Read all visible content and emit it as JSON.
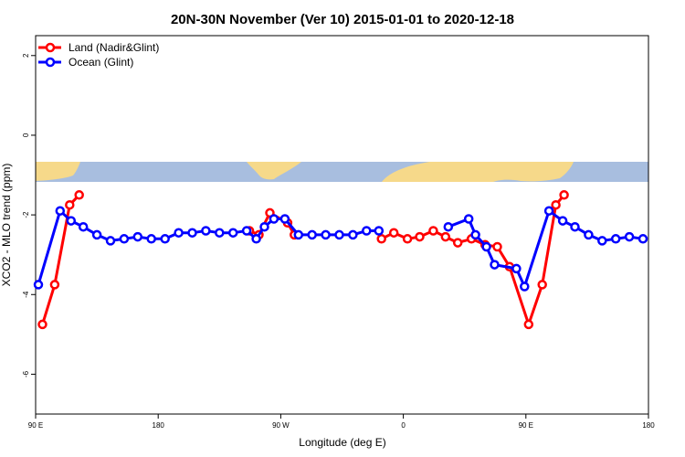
{
  "chart_data": {
    "type": "line",
    "title": "20N-30N November (Ver 10)   2015-01-01 to 2020-12-18",
    "xlabel": "Longitude (deg E)",
    "ylabel": "XCO2 - MLO trend (ppm)",
    "xlim": [
      90,
      540
    ],
    "ylim": [
      -7.0,
      2.5
    ],
    "x_ticks": [
      {
        "value": 90,
        "label": "90 E"
      },
      {
        "value": 180,
        "label": "180"
      },
      {
        "value": 270,
        "label": "90 W"
      },
      {
        "value": 360,
        "label": "0"
      },
      {
        "value": 450,
        "label": "90 E"
      },
      {
        "value": 540,
        "label": "180"
      }
    ],
    "y_ticks": [
      {
        "value": 2,
        "label": "2"
      },
      {
        "value": 0,
        "label": "0"
      },
      {
        "value": -2,
        "label": "-2"
      },
      {
        "value": -4,
        "label": "-4"
      },
      {
        "value": -6,
        "label": "-6"
      }
    ],
    "legend_position": "top-left",
    "background_map": {
      "y_range": [
        -1.45,
        -0.9
      ],
      "ocean_color": "#a8bedf",
      "land_color": "#f6d98a"
    },
    "series": [
      {
        "name": "Land (Nadir&Glint)",
        "color": "#ff0000",
        "points": [
          [
            95,
            -4.75
          ],
          [
            104,
            -3.75
          ],
          [
            115,
            -1.75
          ],
          [
            122,
            -1.5
          ],
          [
            0,
            null
          ],
          [
            247,
            -2.4
          ],
          [
            254,
            -2.5
          ],
          [
            262,
            -1.95
          ],
          [
            275,
            -2.2
          ],
          [
            280,
            -2.5
          ],
          [
            0,
            null
          ],
          [
            344,
            -2.6
          ],
          [
            353,
            -2.45
          ],
          [
            363,
            -2.6
          ],
          [
            372,
            -2.55
          ],
          [
            382,
            -2.4
          ],
          [
            391,
            -2.55
          ],
          [
            400,
            -2.7
          ],
          [
            410,
            -2.6
          ],
          [
            420,
            -2.75
          ],
          [
            429,
            -2.8
          ],
          [
            438,
            -3.3
          ],
          [
            452,
            -4.75
          ],
          [
            462,
            -3.75
          ],
          [
            472,
            -1.75
          ],
          [
            478,
            -1.5
          ]
        ]
      },
      {
        "name": "Ocean (Glint)",
        "color": "#0000ff",
        "points": [
          [
            92,
            -3.75
          ],
          [
            108,
            -1.9
          ],
          [
            116,
            -2.15
          ],
          [
            125,
            -2.3
          ],
          [
            135,
            -2.5
          ],
          [
            145,
            -2.65
          ],
          [
            155,
            -2.6
          ],
          [
            165,
            -2.55
          ],
          [
            175,
            -2.6
          ],
          [
            185,
            -2.6
          ],
          [
            195,
            -2.45
          ],
          [
            205,
            -2.45
          ],
          [
            215,
            -2.4
          ],
          [
            225,
            -2.45
          ],
          [
            235,
            -2.45
          ],
          [
            245,
            -2.4
          ],
          [
            252,
            -2.6
          ],
          [
            258,
            -2.3
          ],
          [
            265,
            -2.1
          ],
          [
            273,
            -2.1
          ],
          [
            283,
            -2.5
          ],
          [
            293,
            -2.5
          ],
          [
            303,
            -2.5
          ],
          [
            313,
            -2.5
          ],
          [
            323,
            -2.5
          ],
          [
            333,
            -2.4
          ],
          [
            342,
            -2.4
          ],
          [
            0,
            null
          ],
          [
            393,
            -2.3
          ],
          [
            408,
            -2.1
          ],
          [
            413,
            -2.5
          ],
          [
            421,
            -2.8
          ],
          [
            427,
            -3.25
          ],
          [
            443,
            -3.35
          ],
          [
            449,
            -3.8
          ],
          [
            467,
            -1.9
          ],
          [
            477,
            -2.15
          ],
          [
            486,
            -2.3
          ],
          [
            496,
            -2.5
          ],
          [
            506,
            -2.65
          ],
          [
            516,
            -2.6
          ],
          [
            526,
            -2.55
          ],
          [
            536,
            -2.6
          ]
        ]
      }
    ]
  }
}
